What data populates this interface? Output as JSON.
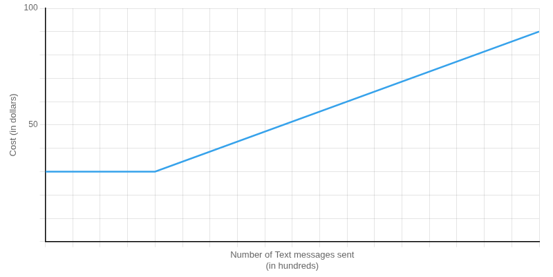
{
  "chart_data": {
    "type": "line",
    "xlabel": "Number of Text messages sent\n(in hundreds)",
    "ylabel": "Cost (in dollars)",
    "x": [
      0,
      4,
      18
    ],
    "values": [
      30,
      30,
      90
    ],
    "xlim": [
      0,
      18
    ],
    "xticks": [
      0,
      1,
      2,
      3,
      4,
      5,
      6,
      7,
      8,
      9,
      10,
      11,
      12,
      13,
      14,
      15,
      16,
      17,
      18
    ],
    "ylim": [
      0,
      100
    ],
    "yticks": [
      {
        "value": 0,
        "label": ""
      },
      {
        "value": 10,
        "label": ""
      },
      {
        "value": 20,
        "label": ""
      },
      {
        "value": 30,
        "label": ""
      },
      {
        "value": 40,
        "label": ""
      },
      50,
      {
        "value": 60,
        "label": ""
      },
      {
        "value": 70,
        "label": ""
      },
      {
        "value": 80,
        "label": ""
      },
      {
        "value": 90,
        "label": ""
      },
      100
    ],
    "grid": true,
    "tick_labels": "y"
  }
}
